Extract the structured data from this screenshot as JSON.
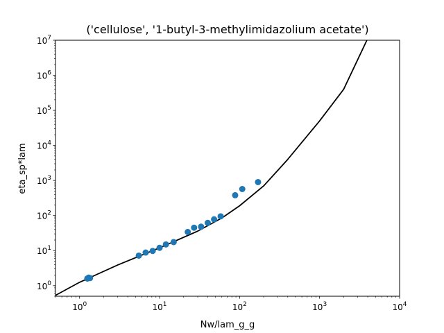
{
  "chart_data": {
    "type": "scatter",
    "title": "('cellulose', '1-butyl-3-methylimidazolium acetate')",
    "xlabel": "Nw/lam_g_g",
    "ylabel": "eta_sp*lam",
    "xscale": "log",
    "yscale": "log",
    "xlim": [
      0.5,
      10000
    ],
    "ylim": [
      0.5,
      10000000
    ],
    "grid": false,
    "x_ticks": [
      {
        "value": 1,
        "base": "10",
        "exp": "0"
      },
      {
        "value": 10,
        "base": "10",
        "exp": "1"
      },
      {
        "value": 100,
        "base": "10",
        "exp": "2"
      },
      {
        "value": 1000,
        "base": "10",
        "exp": "3"
      },
      {
        "value": 10000,
        "base": "10",
        "exp": "4"
      }
    ],
    "y_ticks": [
      {
        "value": 1,
        "base": "10",
        "exp": "0"
      },
      {
        "value": 10,
        "base": "10",
        "exp": "1"
      },
      {
        "value": 100,
        "base": "10",
        "exp": "2"
      },
      {
        "value": 1000,
        "base": "10",
        "exp": "3"
      },
      {
        "value": 10000,
        "base": "10",
        "exp": "4"
      },
      {
        "value": 100000,
        "base": "10",
        "exp": "5"
      },
      {
        "value": 1000000,
        "base": "10",
        "exp": "6"
      },
      {
        "value": 10000000,
        "base": "10",
        "exp": "7"
      }
    ],
    "series": [
      {
        "type": "scatter",
        "color": "#1f77b4",
        "points": [
          {
            "x": 1.25,
            "y": 1.6
          },
          {
            "x": 1.3,
            "y": 1.7
          },
          {
            "x": 1.35,
            "y": 1.65
          },
          {
            "x": 5.5,
            "y": 7.2
          },
          {
            "x": 6.7,
            "y": 8.8
          },
          {
            "x": 8.2,
            "y": 9.8
          },
          {
            "x": 10,
            "y": 12
          },
          {
            "x": 12,
            "y": 15
          },
          {
            "x": 15,
            "y": 17.5
          },
          {
            "x": 22.5,
            "y": 34
          },
          {
            "x": 27,
            "y": 45
          },
          {
            "x": 33,
            "y": 48
          },
          {
            "x": 40,
            "y": 62
          },
          {
            "x": 48,
            "y": 78
          },
          {
            "x": 58,
            "y": 95
          },
          {
            "x": 88,
            "y": 380
          },
          {
            "x": 108,
            "y": 570
          },
          {
            "x": 170,
            "y": 900
          }
        ]
      },
      {
        "type": "line",
        "color": "#000000",
        "points": [
          {
            "x": 0.5,
            "y": 0.53
          },
          {
            "x": 1,
            "y": 1.25
          },
          {
            "x": 3,
            "y": 3.9
          },
          {
            "x": 10,
            "y": 12
          },
          {
            "x": 30,
            "y": 36
          },
          {
            "x": 60,
            "y": 85
          },
          {
            "x": 100,
            "y": 190
          },
          {
            "x": 200,
            "y": 700
          },
          {
            "x": 400,
            "y": 4000
          },
          {
            "x": 1000,
            "y": 50000
          },
          {
            "x": 2000,
            "y": 400000
          },
          {
            "x": 3900,
            "y": 10000000
          }
        ]
      }
    ]
  }
}
